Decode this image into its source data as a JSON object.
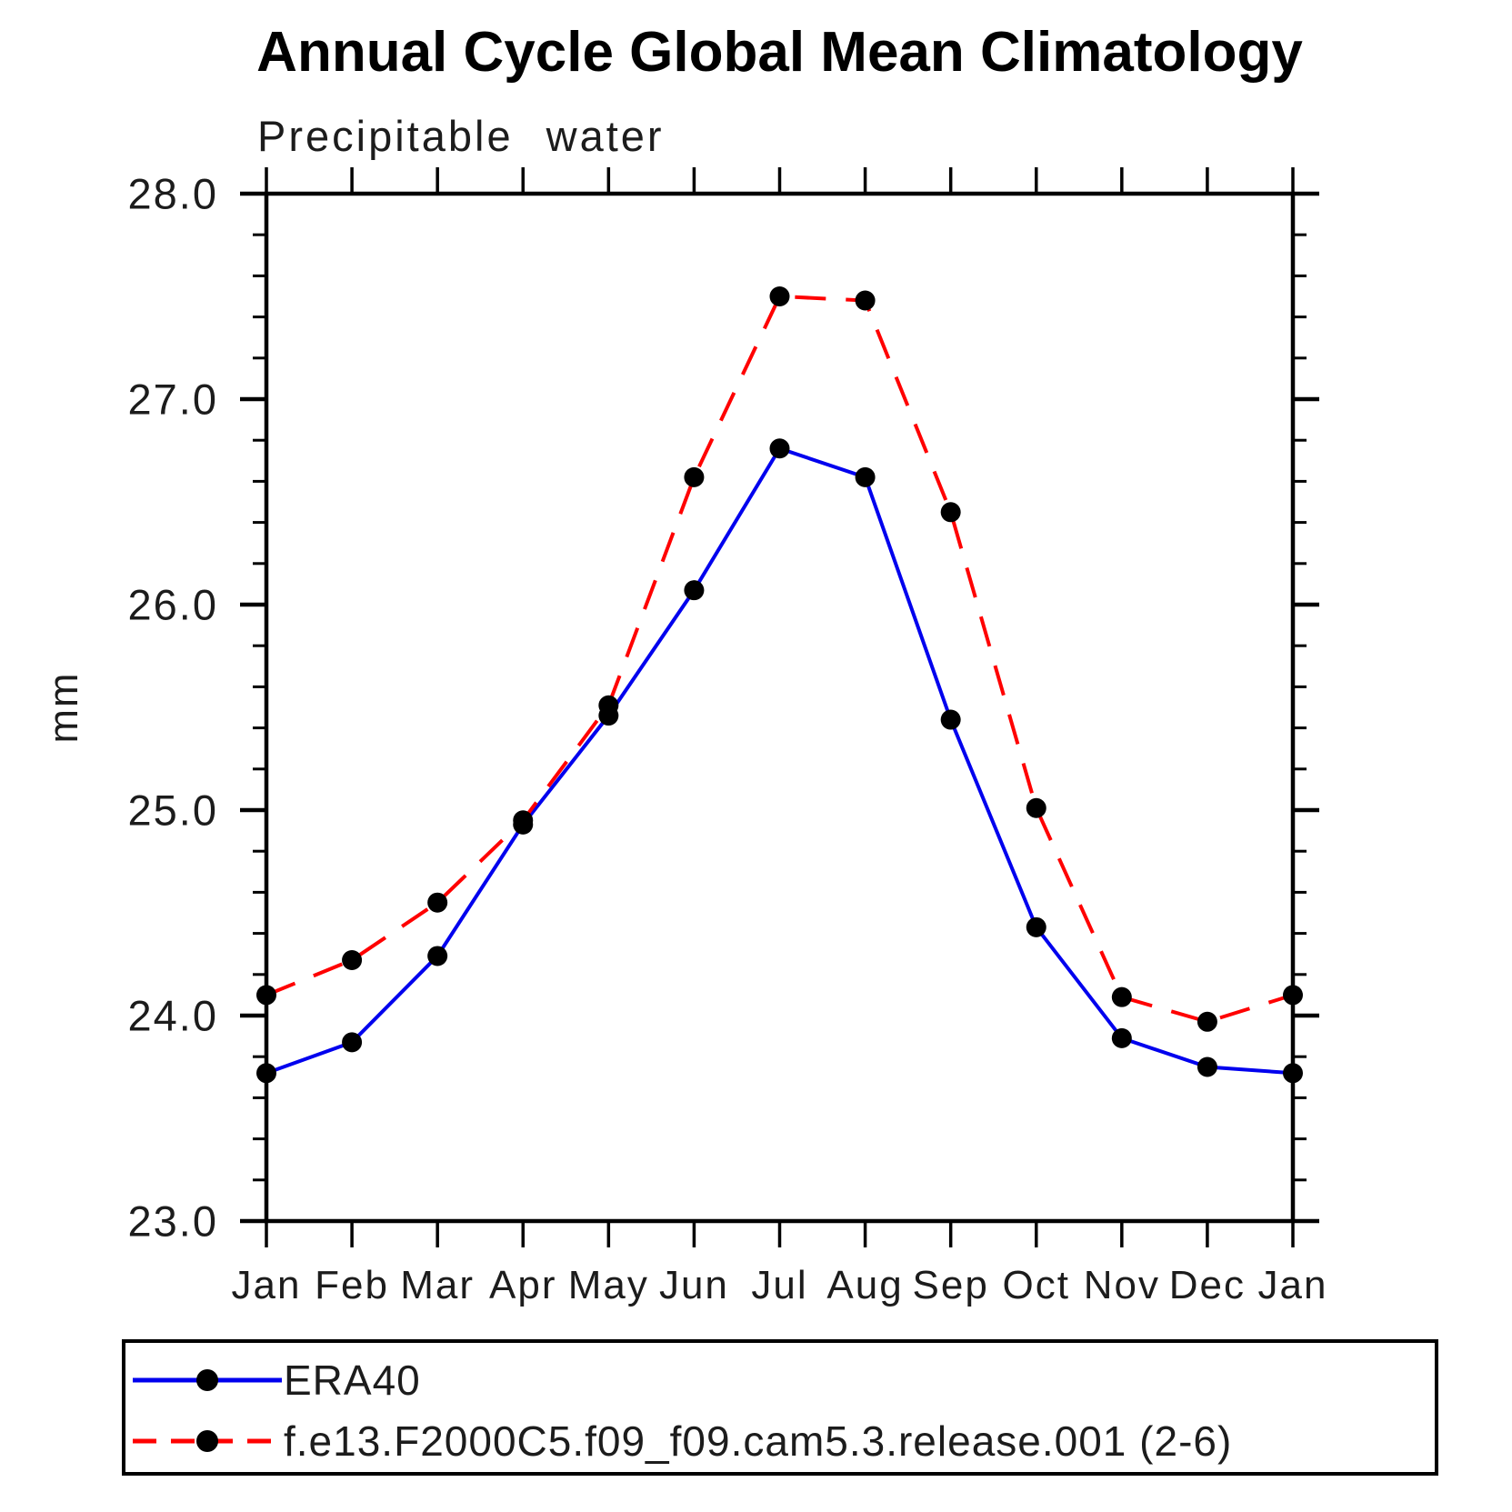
{
  "title": "Annual Cycle Global Mean Climatology",
  "subtitle": "Precipitable water",
  "chart_data": {
    "type": "line",
    "title": "Annual Cycle Global Mean Climatology",
    "subtitle": "Precipitable water",
    "ylabel": "mm",
    "categories": [
      "Jan",
      "Feb",
      "Mar",
      "Apr",
      "May",
      "Jun",
      "Jul",
      "Aug",
      "Sep",
      "Oct",
      "Nov",
      "Dec",
      "Jan"
    ],
    "series": [
      {
        "name": "ERA40",
        "color": "#0000ee",
        "line_style": "solid",
        "marker_color": "#000000",
        "values": [
          23.72,
          23.87,
          24.29,
          24.93,
          25.46,
          26.07,
          26.76,
          26.62,
          25.44,
          24.43,
          23.89,
          23.75,
          23.72
        ]
      },
      {
        "name": "f.e13.F2000C5.f09_f09.cam5.3.release.001 (2-6)",
        "color": "#ff0000",
        "line_style": "dashed",
        "marker_color": "#000000",
        "values": [
          24.1,
          24.27,
          24.55,
          24.95,
          25.51,
          26.62,
          27.5,
          27.48,
          26.45,
          25.01,
          24.09,
          23.97,
          24.1
        ]
      }
    ],
    "ylim": [
      23.0,
      28.0
    ],
    "ytick_values": [
      23.0,
      24.0,
      25.0,
      26.0,
      27.0,
      28.0
    ],
    "ytick_labels": [
      "23.0",
      "24.0",
      "25.0",
      "26.0",
      "27.0",
      "28.0"
    ],
    "y_minor_step": 0.2,
    "grid": "off",
    "legend_position": "below",
    "axis_color": "#000000",
    "text_color": "#1c1c1c"
  }
}
